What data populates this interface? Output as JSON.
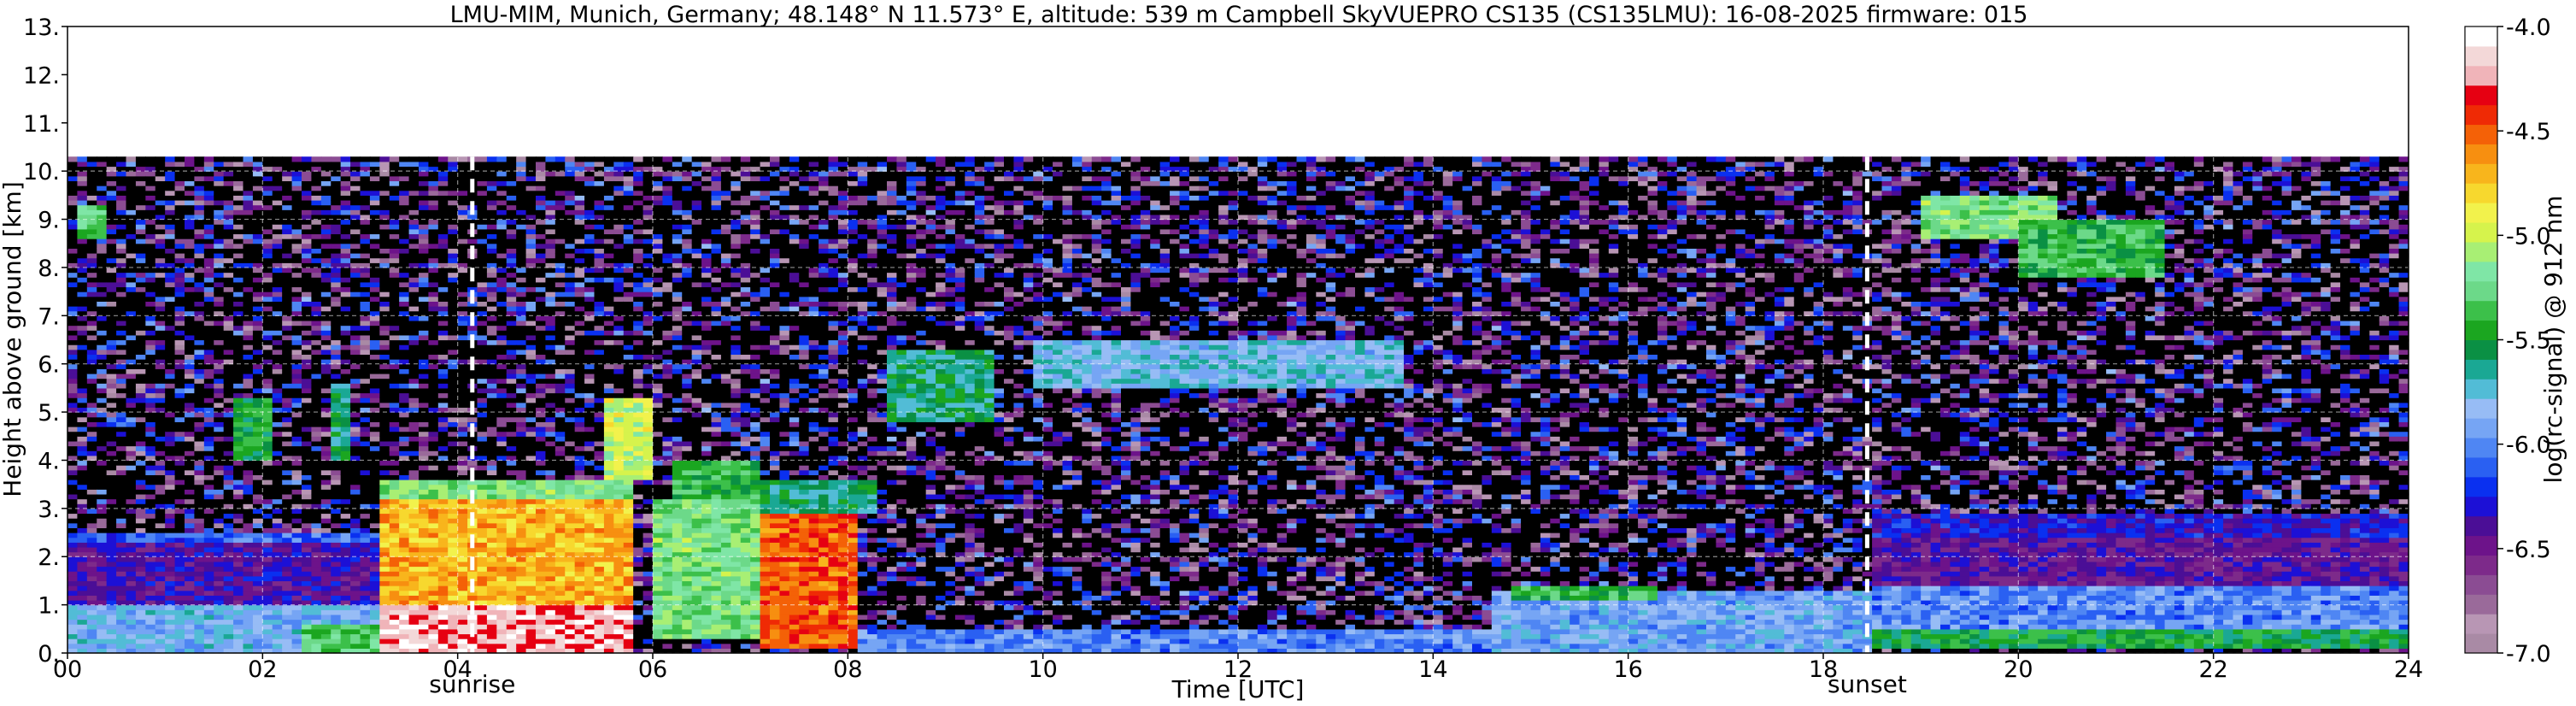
{
  "chart_data": {
    "type": "heatmap",
    "title": "LMU-MIM, Munich, Germany; 48.148° N 11.573° E, altitude: 539 m    Campbell SkyVUEPRO CS135 (CS135LMU): 16-08-2025    firmware: 015",
    "xlabel": "Time [UTC]",
    "ylabel": "Height above ground [km]",
    "xlim": [
      0,
      24
    ],
    "ylim": [
      0,
      13
    ],
    "x_ticks": [
      "00",
      "02",
      "04",
      "06",
      "08",
      "10",
      "12",
      "14",
      "16",
      "18",
      "20",
      "22",
      "24"
    ],
    "y_ticks": [
      "0.",
      "1.",
      "2.",
      "3.",
      "4.",
      "5.",
      "6.",
      "7.",
      "8.",
      "9.",
      "10.",
      "11.",
      "12.",
      "13."
    ],
    "grid": true,
    "measurement_top_km": 10.3,
    "annotations": [
      {
        "text": "sunrise",
        "x": 4.15
      },
      {
        "text": "sunset",
        "x": 18.45
      }
    ],
    "colorbar": {
      "label": "log(rc-signal) @ 912 nm",
      "range": [
        -7.0,
        -4.0
      ],
      "ticks": [
        "-4.0",
        "-4.5",
        "-5.0",
        "-5.5",
        "-6.0",
        "-6.5",
        "-7.0"
      ],
      "colors": [
        "#a98aa5",
        "#b896b4",
        "#9a6a9a",
        "#8b4c93",
        "#7d2a8a",
        "#6d138a",
        "#4b0e96",
        "#1c10d6",
        "#0a30f0",
        "#2a60f2",
        "#4f86f3",
        "#76a5f4",
        "#97bcf5",
        "#52bcd6",
        "#1aa894",
        "#0a9044",
        "#1ba620",
        "#3cc04a",
        "#6cd989",
        "#7fe6a6",
        "#a8ef74",
        "#d6f34c",
        "#f2f24c",
        "#f7d82e",
        "#f8b51c",
        "#f78f10",
        "#f46107",
        "#ef2a05",
        "#e60012",
        "#f0b4b9",
        "#f3d8d8",
        "#ffffff"
      ]
    },
    "regions": [
      {
        "t0": 0.0,
        "t1": 3.25,
        "h0": 0.05,
        "h1": 1.0,
        "v": -5.85
      },
      {
        "t0": 0.0,
        "t1": 3.25,
        "h0": 1.0,
        "h1": 2.3,
        "v": -6.4
      },
      {
        "t0": 0.0,
        "t1": 3.25,
        "h0": 2.3,
        "h1": 2.5,
        "v": -6.1
      },
      {
        "t0": 2.4,
        "t1": 3.25,
        "h0": 0.05,
        "h1": 0.6,
        "v": -5.3
      },
      {
        "t0": 3.25,
        "t1": 5.85,
        "h0": 0.05,
        "h1": 1.0,
        "v": -4.2
      },
      {
        "t0": 3.25,
        "t1": 5.85,
        "h0": 1.0,
        "h1": 3.2,
        "v": -4.7
      },
      {
        "t0": 3.25,
        "t1": 5.85,
        "h0": 3.2,
        "h1": 3.6,
        "v": -5.2
      },
      {
        "t0": 5.5,
        "t1": 6.0,
        "h0": 3.6,
        "h1": 5.3,
        "v": -5.0
      },
      {
        "t0": 6.0,
        "t1": 7.15,
        "h0": 0.3,
        "h1": 3.2,
        "v": -5.2
      },
      {
        "t0": 6.2,
        "t1": 7.15,
        "h0": 3.2,
        "h1": 4.0,
        "v": -5.4
      },
      {
        "t0": 7.15,
        "t1": 8.1,
        "h0": 0.1,
        "h1": 2.9,
        "v": -4.5
      },
      {
        "t0": 7.15,
        "t1": 8.3,
        "h0": 2.9,
        "h1": 3.6,
        "v": -5.6
      },
      {
        "t0": 8.1,
        "t1": 14.6,
        "h0": 0.05,
        "h1": 0.5,
        "v": -6.0
      },
      {
        "t0": 14.6,
        "t1": 18.5,
        "h0": 0.05,
        "h1": 1.3,
        "v": -5.9
      },
      {
        "t0": 14.8,
        "t1": 16.3,
        "h0": 1.1,
        "h1": 1.4,
        "v": -5.4
      },
      {
        "t0": 18.5,
        "t1": 24.0,
        "h0": 0.1,
        "h1": 0.5,
        "v": -5.5
      },
      {
        "t0": 18.5,
        "t1": 24.0,
        "h0": 0.5,
        "h1": 1.4,
        "v": -6.0
      },
      {
        "t0": 18.5,
        "t1": 24.0,
        "h0": 1.4,
        "h1": 2.4,
        "v": -6.45
      },
      {
        "t0": 18.5,
        "t1": 24.0,
        "h0": 2.4,
        "h1": 2.9,
        "v": -6.3
      },
      {
        "t0": 19.0,
        "t1": 20.4,
        "h0": 8.6,
        "h1": 9.5,
        "v": -5.2
      },
      {
        "t0": 20.0,
        "t1": 21.5,
        "h0": 7.8,
        "h1": 9.0,
        "v": -5.4
      },
      {
        "t0": 0.1,
        "t1": 0.45,
        "h0": 8.6,
        "h1": 9.3,
        "v": -5.3
      },
      {
        "t0": 1.7,
        "t1": 2.1,
        "h0": 4.0,
        "h1": 5.3,
        "v": -5.5
      },
      {
        "t0": 2.7,
        "t1": 2.9,
        "h0": 4.0,
        "h1": 5.6,
        "v": -5.6
      },
      {
        "t0": 9.9,
        "t1": 13.7,
        "h0": 5.5,
        "h1": 6.5,
        "v": -5.8
      },
      {
        "t0": 8.4,
        "t1": 9.5,
        "h0": 4.8,
        "h1": 6.3,
        "v": -5.6
      }
    ]
  }
}
